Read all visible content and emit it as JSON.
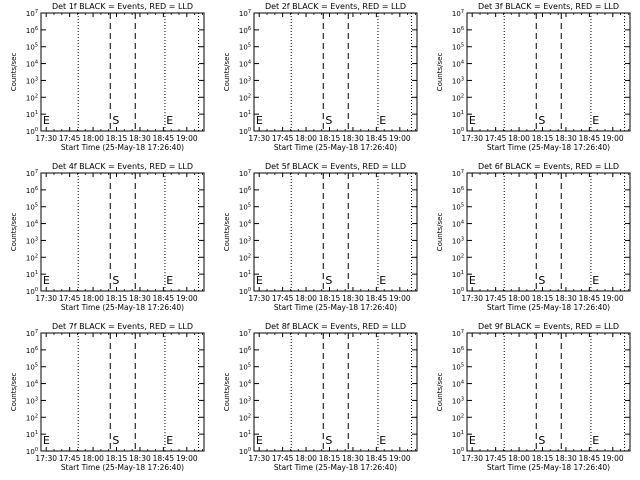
{
  "chart_data": {
    "type": "line",
    "layout": "3x3 grid of identical panels",
    "shared": {
      "xlabel": "Start Time (25-May-18 17:26:40)",
      "ylabel": "Counts/sec",
      "xticks": [
        "17:30",
        "17:45",
        "18:00",
        "18:15",
        "18:30",
        "18:45",
        "19:00"
      ],
      "xtick_minutes": [
        30,
        45,
        60,
        75,
        90,
        105,
        120
      ],
      "xlim_minutes": [
        26.67,
        131.0
      ],
      "yscale": "log",
      "ylim": [
        1,
        10000000
      ],
      "yticks": [
        {
          "base": "10",
          "exp": "0",
          "value": 1
        },
        {
          "base": "10",
          "exp": "1",
          "value": 10
        },
        {
          "base": "10",
          "exp": "2",
          "value": 100
        },
        {
          "base": "10",
          "exp": "3",
          "value": 1000
        },
        {
          "base": "10",
          "exp": "4",
          "value": 10000
        },
        {
          "base": "10",
          "exp": "5",
          "value": 100000
        },
        {
          "base": "10",
          "exp": "6",
          "value": 1000000
        },
        {
          "base": "10",
          "exp": "7",
          "value": 10000000
        }
      ],
      "dotted_lines_minutes": [
        26.67,
        50.5,
        106.0,
        127.5
      ],
      "dashed_lines_minutes": [
        71.0,
        87.0
      ],
      "markers": [
        {
          "label": "E",
          "minute": 27.5
        },
        {
          "label": "S",
          "minute": 72.0
        },
        {
          "label": "E",
          "minute": 106.5
        }
      ],
      "grid": false
    },
    "panels": [
      {
        "title": "Det 1f BLACK = Events, RED = LLD"
      },
      {
        "title": "Det 2f BLACK = Events, RED = LLD"
      },
      {
        "title": "Det 3f BLACK = Events, RED = LLD"
      },
      {
        "title": "Det 4f BLACK = Events, RED = LLD"
      },
      {
        "title": "Det 5f BLACK = Events, RED = LLD"
      },
      {
        "title": "Det 6f BLACK = Events, RED = LLD"
      },
      {
        "title": "Det 7f BLACK = Events, RED = LLD"
      },
      {
        "title": "Det 8f BLACK = Events, RED = LLD"
      },
      {
        "title": "Det 9f BLACK = Events, RED = LLD"
      }
    ]
  }
}
